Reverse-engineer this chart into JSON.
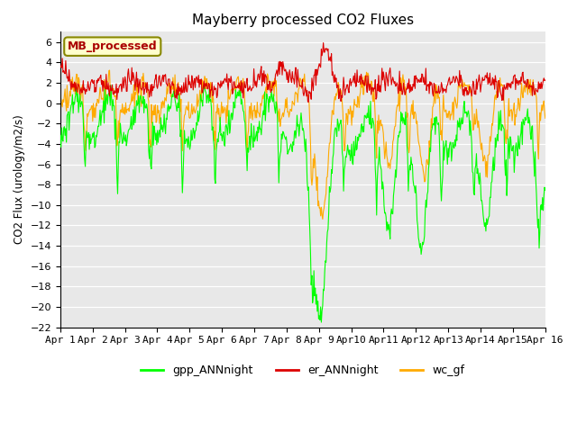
{
  "title": "Mayberry processed CO2 Fluxes",
  "ylabel": "CO2 Flux (urology/m2/s)",
  "ylim": [
    -22,
    7
  ],
  "n_days": 15,
  "points_per_day": 48,
  "colors": {
    "gpp": "#00ff00",
    "er": "#dd0000",
    "wc": "#ffaa00"
  },
  "legend_labels": [
    "gpp_ANNnight",
    "er_ANNnight",
    "wc_gf"
  ],
  "legend_box_label": "MB_processed",
  "legend_box_bg": "#ffffcc",
  "legend_box_border": "#888800",
  "legend_box_text": "#aa0000",
  "fig_bg": "#ffffff",
  "plot_bg": "#e8e8e8",
  "xticklabels": [
    "Apr 1",
    "Apr 2",
    "Apr 3",
    "Apr 4",
    "Apr 5",
    "Apr 6",
    "Apr 7",
    "Apr 8",
    "Apr 9",
    "Apr10",
    "Apr11",
    "Apr12",
    "Apr13",
    "Apr14",
    "Apr15",
    "Apr 16"
  ],
  "linewidth": 0.8,
  "seed": 1234
}
